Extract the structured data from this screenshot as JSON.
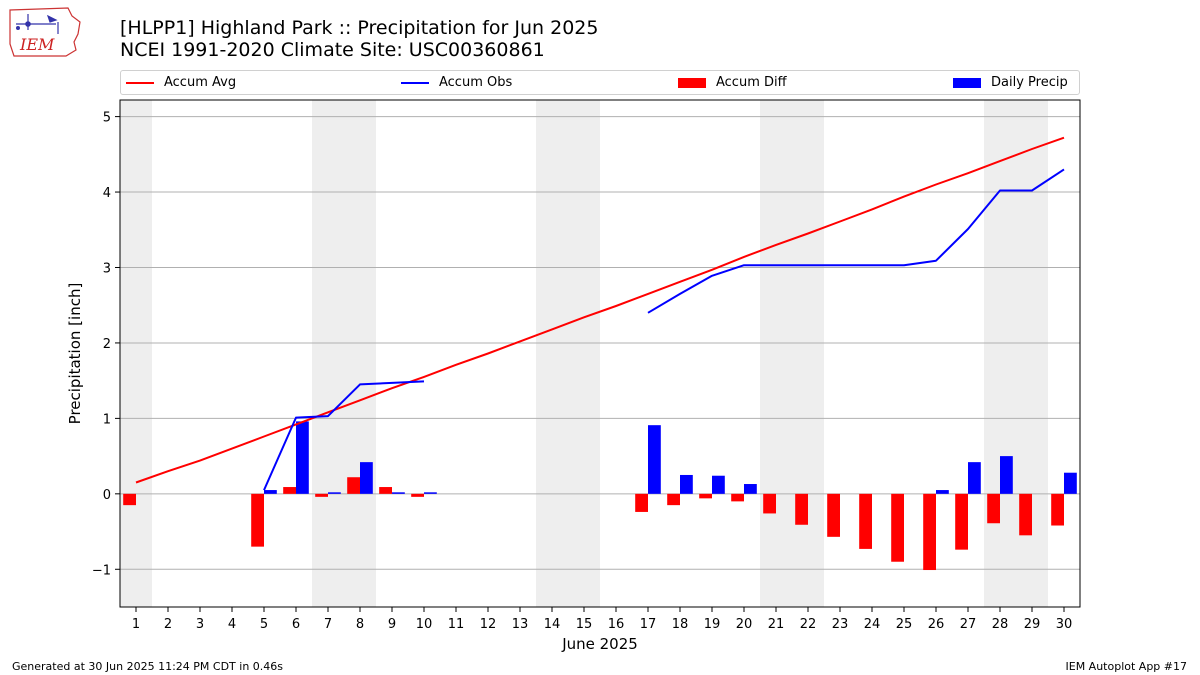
{
  "header": {
    "title_line1": "[HLPP1] Highland Park :: Precipitation for Jun 2025",
    "title_line2": "NCEI 1991-2020 Climate Site: USC00360861",
    "logo_text": "IEM"
  },
  "legend": {
    "accum_avg": "Accum Avg",
    "accum_obs": "Accum Obs",
    "accum_diff": "Accum Diff",
    "daily_precip": "Daily Precip"
  },
  "footer": {
    "generated": "Generated at 30 Jun 2025 11:24 PM CDT in 0.46s",
    "app": "IEM Autoplot App #17"
  },
  "colors": {
    "accum_avg": "#ff0000",
    "accum_obs": "#0000ff",
    "accum_diff": "#ff0000",
    "daily_precip": "#0000ff",
    "weekend_shade": "#eeeeee",
    "grid": "#b0b0b0"
  },
  "chart_data": {
    "type": "bar",
    "xlabel": "June 2025",
    "ylabel": "Precipitation [inch]",
    "ylim": [
      -1.5,
      5.22
    ],
    "xlim": [
      0.5,
      30.5
    ],
    "yticks": [
      -1,
      0,
      1,
      2,
      3,
      4,
      5
    ],
    "ytick_labels": [
      "−1",
      "0",
      "1",
      "2",
      "3",
      "4",
      "5"
    ],
    "grid": true,
    "legend_position": "top",
    "weekend_days": [
      1,
      7,
      8,
      14,
      15,
      21,
      22,
      28,
      29
    ],
    "x": [
      1,
      2,
      3,
      4,
      5,
      6,
      7,
      8,
      9,
      10,
      11,
      12,
      13,
      14,
      15,
      16,
      17,
      18,
      19,
      20,
      21,
      22,
      23,
      24,
      25,
      26,
      27,
      28,
      29,
      30
    ],
    "series": [
      {
        "name": "Accum Avg",
        "kind": "line",
        "values": [
          0.15,
          0.3,
          0.44,
          0.6,
          0.76,
          0.92,
          1.08,
          1.24,
          1.4,
          1.55,
          1.71,
          1.86,
          2.02,
          2.18,
          2.34,
          2.49,
          2.65,
          2.81,
          2.97,
          3.14,
          3.3,
          3.45,
          3.61,
          3.77,
          3.94,
          4.1,
          4.25,
          4.41,
          4.57,
          4.72
        ]
      },
      {
        "name": "Accum Obs",
        "kind": "line",
        "values": [
          null,
          null,
          null,
          null,
          0.05,
          1.01,
          1.03,
          1.45,
          1.47,
          1.49,
          null,
          null,
          null,
          null,
          null,
          null,
          2.4,
          2.65,
          2.89,
          3.03,
          3.03,
          3.03,
          3.03,
          3.03,
          3.03,
          3.09,
          3.51,
          4.02,
          4.02,
          4.3
        ]
      },
      {
        "name": "Accum Diff",
        "kind": "bar",
        "values": [
          -0.15,
          null,
          null,
          null,
          -0.7,
          0.09,
          -0.04,
          0.22,
          0.09,
          -0.04,
          null,
          null,
          null,
          null,
          null,
          null,
          -0.24,
          -0.15,
          -0.06,
          -0.1,
          -0.26,
          -0.41,
          -0.57,
          -0.73,
          -0.9,
          -1.01,
          -0.74,
          -0.39,
          -0.55,
          -0.42
        ]
      },
      {
        "name": "Daily Precip",
        "kind": "bar",
        "values": [
          null,
          null,
          null,
          null,
          0.05,
          0.96,
          0.02,
          0.42,
          0.02,
          0.02,
          null,
          null,
          null,
          null,
          null,
          null,
          0.91,
          0.25,
          0.24,
          0.13,
          null,
          null,
          null,
          null,
          null,
          0.05,
          0.42,
          0.5,
          null,
          0.28
        ]
      }
    ]
  }
}
